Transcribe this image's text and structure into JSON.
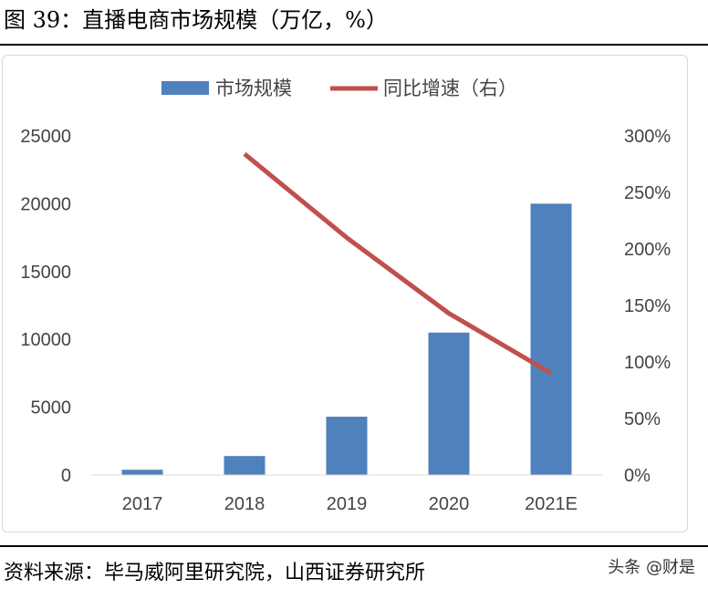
{
  "header": {
    "title": "图 39：直播电商市场规模（万亿，%）"
  },
  "footer": {
    "source": "资料来源：毕马威阿里研究院，山西证券研究所",
    "watermark": "头条 @财是"
  },
  "chart_data": {
    "type": "bar",
    "categories": [
      "2017",
      "2018",
      "2019",
      "2020",
      "2021E"
    ],
    "series": [
      {
        "name": "市场规模",
        "type": "bar",
        "axis": "left",
        "color": "#4f81bd",
        "values": [
          390,
          1400,
          4300,
          10500,
          20000
        ]
      },
      {
        "name": "同比增速（右）",
        "type": "line",
        "axis": "right",
        "color": "#c0504d",
        "values": [
          null,
          2.84,
          2.1,
          1.43,
          0.9
        ]
      }
    ],
    "y_left": {
      "range": [
        0,
        25000
      ],
      "ticks": [
        "0",
        "5000",
        "10000",
        "15000",
        "20000",
        "25000"
      ]
    },
    "y_right": {
      "range": [
        0,
        3
      ],
      "ticks": [
        "0%",
        "50%",
        "100%",
        "150%",
        "200%",
        "250%",
        "300%"
      ]
    },
    "legend": "top-center",
    "grid": false
  }
}
